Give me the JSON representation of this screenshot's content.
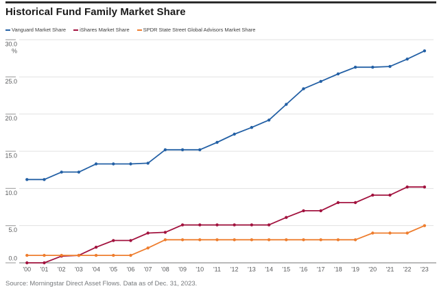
{
  "header": {
    "title": "Historical Fund Family Market Share"
  },
  "legend": {
    "items": [
      {
        "label": "Vanguard Market Share",
        "color": "#2360a5"
      },
      {
        "label": "iShares Market Share",
        "color": "#a2123e"
      },
      {
        "label": "SPDR State Street Global Advisors Market Share",
        "color": "#ee7d2e"
      }
    ]
  },
  "chart_data": {
    "type": "line",
    "title": "Historical Fund Family Market Share",
    "x": [
      "'00",
      "'01",
      "'02",
      "'03",
      "'04",
      "'05",
      "'06",
      "'07",
      "'08",
      "'09",
      "'10",
      "'11",
      "'12",
      "'13",
      "'14",
      "'15",
      "'16",
      "'17",
      "'18",
      "'19",
      "'20",
      "'21",
      "'22",
      "'23"
    ],
    "series": [
      {
        "name": "Vanguard Market Share",
        "color": "#2360a5",
        "values": [
          11.2,
          11.2,
          12.2,
          12.2,
          13.3,
          13.3,
          13.3,
          13.4,
          15.2,
          15.2,
          15.2,
          16.2,
          17.3,
          18.2,
          19.2,
          21.3,
          23.4,
          24.4,
          25.4,
          26.3,
          26.3,
          26.4,
          27.4,
          28.5
        ]
      },
      {
        "name": "iShares Market Share",
        "color": "#a2123e",
        "values": [
          0.0,
          0.0,
          0.9,
          1.0,
          2.1,
          3.0,
          3.0,
          4.0,
          4.1,
          5.1,
          5.1,
          5.1,
          5.1,
          5.1,
          5.1,
          6.1,
          7.0,
          7.0,
          8.1,
          8.1,
          9.1,
          9.1,
          10.2,
          10.2
        ]
      },
      {
        "name": "SPDR State Street Global Advisors Market Share",
        "color": "#ee7d2e",
        "values": [
          1.0,
          1.0,
          1.0,
          1.0,
          1.0,
          1.0,
          1.0,
          2.0,
          3.1,
          3.1,
          3.1,
          3.1,
          3.1,
          3.1,
          3.1,
          3.1,
          3.1,
          3.1,
          3.1,
          3.1,
          4.0,
          4.0,
          4.0,
          5.0
        ]
      }
    ],
    "ylabel_unit": "%",
    "ylim": [
      0,
      30
    ],
    "yticks": [
      0,
      5,
      10,
      15,
      20,
      25,
      30
    ],
    "ytick_labels": [
      "0.0",
      "5.0",
      "10.0",
      "15.0",
      "20.0",
      "25.0",
      "30.0"
    ],
    "grid": "horizontal",
    "legend_position": "top"
  },
  "footer": {
    "source": "Source: Morningstar Direct Asset Flows. Data as of Dec. 31, 2023."
  }
}
